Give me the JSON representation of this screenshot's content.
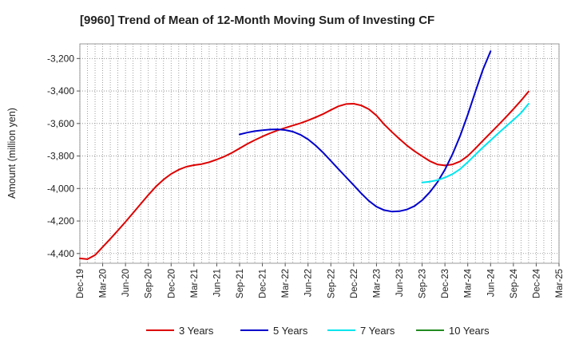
{
  "chart_data": {
    "type": "line",
    "title": "[9960]  Trend of Mean of 12-Month Moving Sum of Investing CF",
    "xlabel": "",
    "ylabel": "Amount (million yen)",
    "ylim": [
      -4460,
      -3110
    ],
    "y_ticks": [
      -3200,
      -3400,
      -3600,
      -3800,
      -4000,
      -4200,
      -4400
    ],
    "y_tick_labels": [
      "-3,200",
      "-3,400",
      "-3,600",
      "-3,800",
      "-4,000",
      "-4,200",
      "-4,400"
    ],
    "x_tick_labels": [
      "Dec-19",
      "Mar-20",
      "Jun-20",
      "Sep-20",
      "Dec-20",
      "Mar-21",
      "Jun-21",
      "Sep-21",
      "Dec-21",
      "Mar-22",
      "Jun-22",
      "Sep-22",
      "Dec-22",
      "Mar-23",
      "Jun-23",
      "Sep-23",
      "Dec-23",
      "Mar-24",
      "Jun-24",
      "Sep-24",
      "Dec-24",
      "Mar-25"
    ],
    "x_start": "Dec-19",
    "x_count_months": 63,
    "grid": true,
    "legend_position": "bottom",
    "series": [
      {
        "name": "3 Years",
        "color": "#dd0000",
        "start_month_index": 0,
        "values": [
          -4430,
          -4435,
          -4410,
          -4360,
          -4310,
          -4258,
          -4205,
          -4150,
          -4095,
          -4040,
          -3988,
          -3945,
          -3910,
          -3884,
          -3866,
          -3856,
          -3850,
          -3838,
          -3822,
          -3803,
          -3780,
          -3753,
          -3726,
          -3702,
          -3680,
          -3660,
          -3642,
          -3627,
          -3612,
          -3598,
          -3581,
          -3562,
          -3541,
          -3517,
          -3494,
          -3480,
          -3478,
          -3489,
          -3512,
          -3551,
          -3605,
          -3651,
          -3694,
          -3735,
          -3770,
          -3801,
          -3831,
          -3852,
          -3858,
          -3852,
          -3833,
          -3800,
          -3754,
          -3705,
          -3658,
          -3610,
          -3562,
          -3511,
          -3459,
          -3403
        ]
      },
      {
        "name": "5 Years",
        "color": "#0000cc",
        "start_month_index": 21,
        "values": [
          -3667,
          -3656,
          -3647,
          -3641,
          -3637,
          -3636,
          -3640,
          -3650,
          -3669,
          -3697,
          -3735,
          -3780,
          -3830,
          -3880,
          -3930,
          -3980,
          -4030,
          -4076,
          -4112,
          -4133,
          -4142,
          -4140,
          -4129,
          -4108,
          -4072,
          -4023,
          -3962,
          -3884,
          -3788,
          -3676,
          -3546,
          -3405,
          -3267,
          -3155
        ]
      },
      {
        "name": "7 Years",
        "color": "#00e5ee",
        "start_month_index": 45,
        "values": [
          -3963,
          -3958,
          -3949,
          -3933,
          -3911,
          -3880,
          -3838,
          -3792,
          -3746,
          -3704,
          -3661,
          -3619,
          -3578,
          -3535,
          -3478
        ]
      },
      {
        "name": "10 Years",
        "color": "#228b22",
        "start_month_index": 0,
        "values": []
      }
    ]
  }
}
